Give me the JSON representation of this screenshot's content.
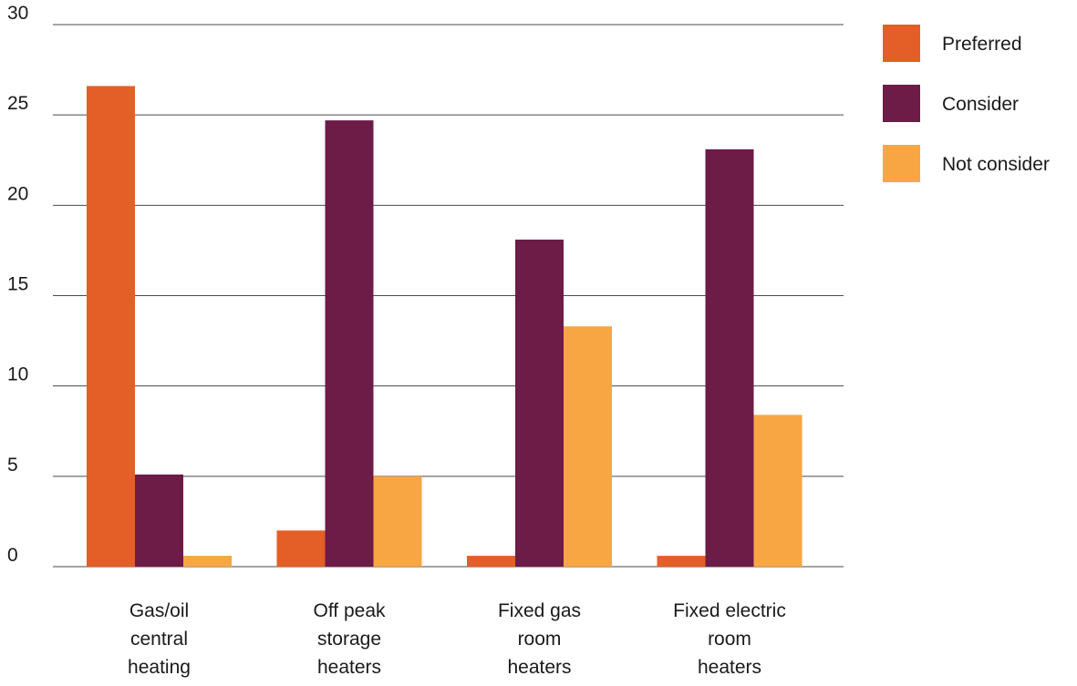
{
  "chart_data": {
    "type": "bar",
    "title": "",
    "xlabel": "",
    "ylabel": "",
    "ylim": [
      0,
      30
    ],
    "y_ticks": [
      0,
      5,
      10,
      15,
      20,
      25,
      30
    ],
    "grid": true,
    "legend_position": "right",
    "categories": [
      [
        "Gas/oil",
        "central",
        "heating"
      ],
      [
        "Off peak",
        "storage",
        "heaters"
      ],
      [
        "Fixed gas",
        "room",
        "heaters"
      ],
      [
        "Fixed electric",
        "room",
        "heaters"
      ]
    ],
    "series": [
      {
        "name": "Preferred",
        "color": "#E35F27",
        "values": [
          26.6,
          2.0,
          0.6,
          0.6
        ]
      },
      {
        "name": "Consider",
        "color": "#6D1B47",
        "values": [
          5.1,
          24.7,
          18.1,
          23.1
        ]
      },
      {
        "name": "Not consider",
        "color": "#F7A643",
        "values": [
          0.6,
          5.0,
          13.3,
          8.4
        ]
      }
    ]
  }
}
